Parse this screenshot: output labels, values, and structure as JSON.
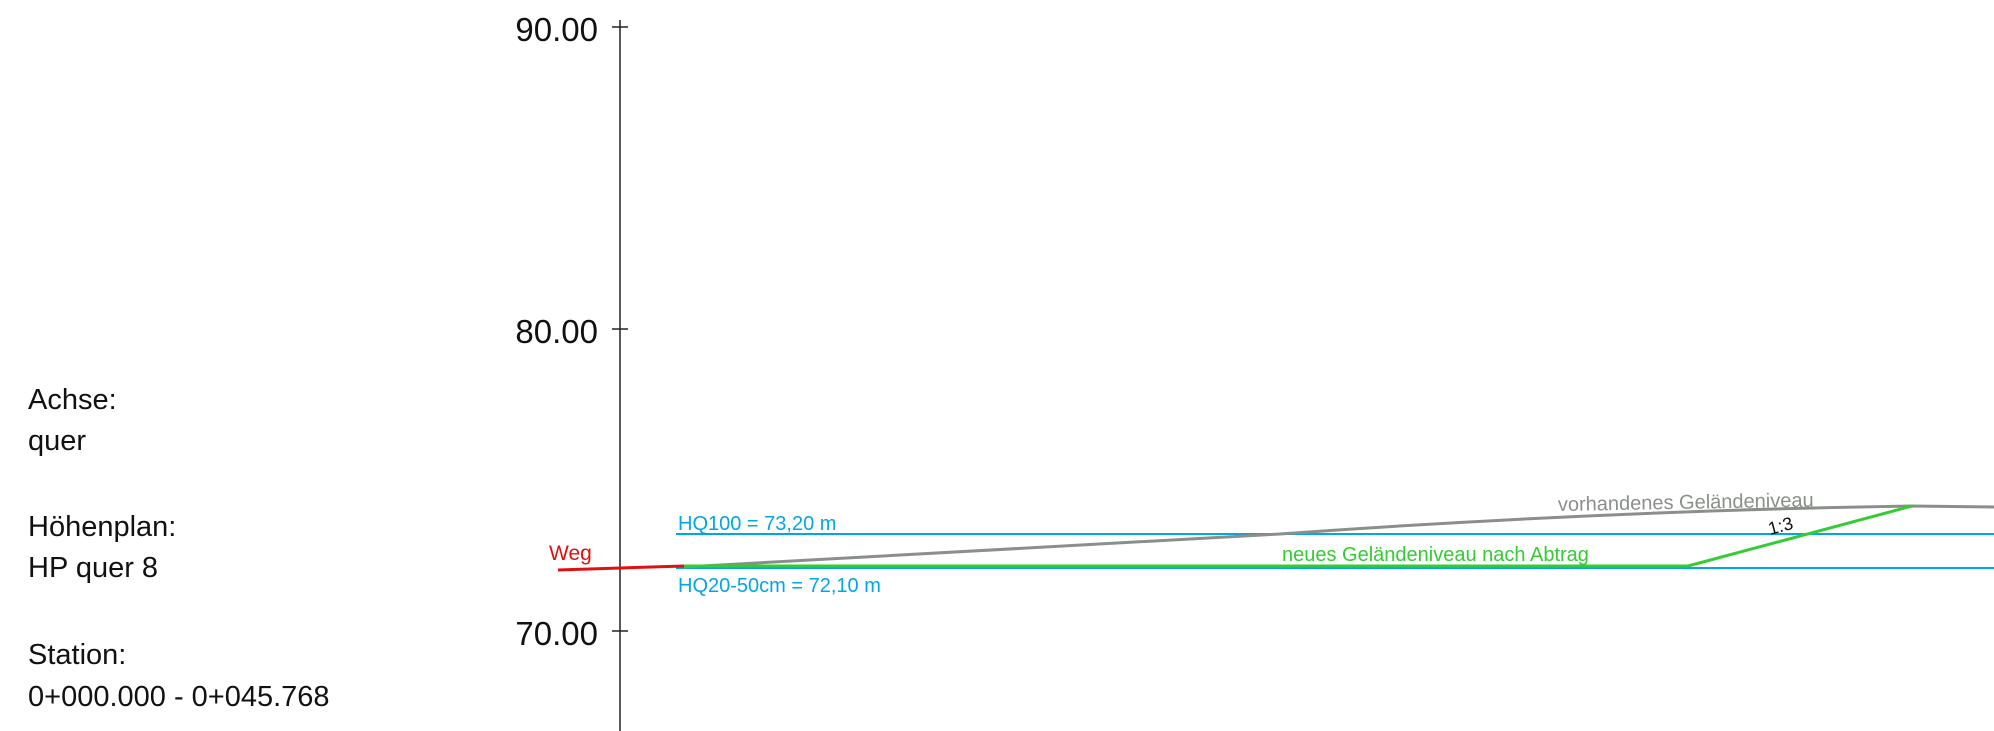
{
  "info": {
    "axis_label": "Achse:",
    "axis_value": "quer",
    "plan_label": "Höhenplan:",
    "plan_value": "HP quer 8",
    "station_label": "Station:",
    "station_value": "0+000.000 - 0+045.768"
  },
  "colors": {
    "water": "#00a6e6",
    "terrain_existing": "#8a8f8a",
    "terrain_new": "#33cc33",
    "path": "#e01010",
    "axis": "#222222"
  },
  "chart_data": {
    "type": "line",
    "y_axis": {
      "ticks": [
        {
          "value": 90,
          "label": "90.00"
        },
        {
          "value": 80,
          "label": "80.00"
        },
        {
          "value": 70,
          "label": "70.00"
        }
      ]
    },
    "levels": [
      {
        "name": "HQ100",
        "label": "HQ100 = 73,20 m",
        "value": 73.2
      },
      {
        "name": "HQ20-50cm",
        "label": "HQ20-50cm = 72,10 m",
        "value": 72.1
      }
    ],
    "annotations": {
      "existing_terrain": "vorhandenes Geländeniveau",
      "new_terrain": "neues Geländeniveau nach Abtrag",
      "slope": "1:3",
      "path": "Weg"
    }
  }
}
